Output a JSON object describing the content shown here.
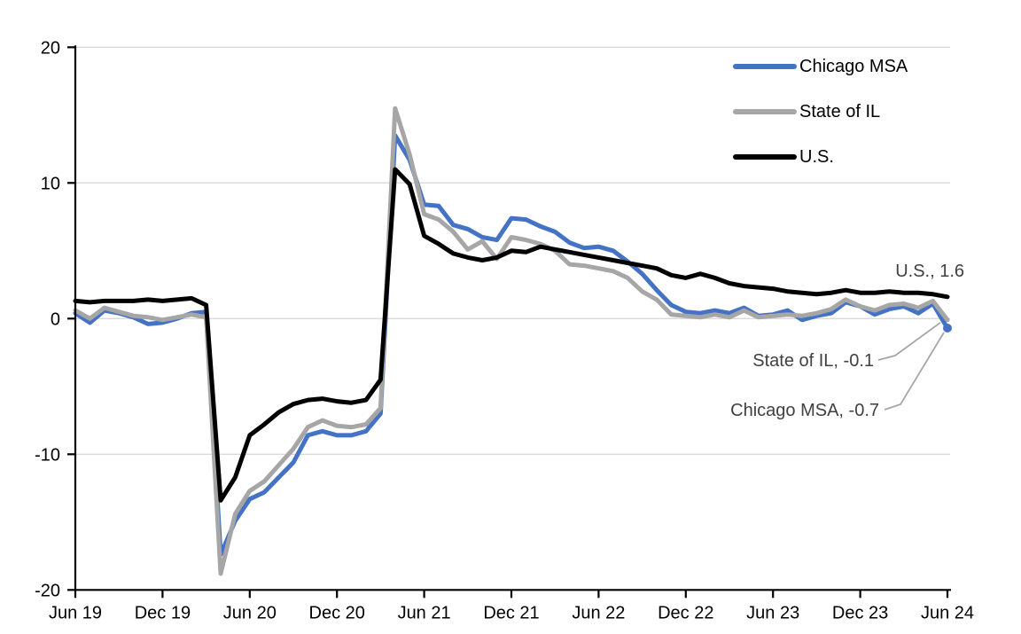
{
  "chart": {
    "legend": {
      "items": [
        {
          "label": "Chicago MSA",
          "color": "#4472C4"
        },
        {
          "label": "State of IL",
          "color": "#A6A6A6"
        },
        {
          "label": "U.S.",
          "color": "#000000"
        }
      ]
    },
    "annotations": {
      "us": "U.S., 1.6",
      "il": "State of IL, -0.1",
      "chicago": "Chicago MSA, -0.7"
    },
    "colors": {
      "gridline": "#D9D9D9",
      "axis": "#000000",
      "annotation_text": "#404040",
      "leader_line": "#A6A6A6"
    }
  },
  "chart_data": {
    "type": "line",
    "title": "",
    "xlabel": "",
    "ylabel": "",
    "ylim": [
      -20,
      20
    ],
    "y_ticks": [
      20,
      10,
      0,
      -10,
      -20
    ],
    "grid": "horizontal",
    "legend_position": "top-right",
    "x_months": [
      "2019-06",
      "2019-07",
      "2019-08",
      "2019-09",
      "2019-10",
      "2019-11",
      "2019-12",
      "2020-01",
      "2020-02",
      "2020-03",
      "2020-04",
      "2020-05",
      "2020-06",
      "2020-07",
      "2020-08",
      "2020-09",
      "2020-10",
      "2020-11",
      "2020-12",
      "2021-01",
      "2021-02",
      "2021-03",
      "2021-04",
      "2021-05",
      "2021-06",
      "2021-07",
      "2021-08",
      "2021-09",
      "2021-10",
      "2021-11",
      "2021-12",
      "2022-01",
      "2022-02",
      "2022-03",
      "2022-04",
      "2022-05",
      "2022-06",
      "2022-07",
      "2022-08",
      "2022-09",
      "2022-10",
      "2022-11",
      "2022-12",
      "2023-01",
      "2023-02",
      "2023-03",
      "2023-04",
      "2023-05",
      "2023-06",
      "2023-07",
      "2023-08",
      "2023-09",
      "2023-10",
      "2023-11",
      "2023-12",
      "2024-01",
      "2024-02",
      "2024-03",
      "2024-04",
      "2024-05",
      "2024-06"
    ],
    "x_tick_labels": [
      "Jun 19",
      "Dec 19",
      "Jun 20",
      "Dec 20",
      "Jun 21",
      "Dec 21",
      "Jun 22",
      "Dec 22",
      "Jun 23",
      "Dec 23",
      "Jun 24"
    ],
    "x_tick_indices": [
      0,
      6,
      12,
      18,
      24,
      30,
      36,
      42,
      48,
      54,
      60
    ],
    "series": [
      {
        "name": "Chicago MSA",
        "color": "#4472C4",
        "values": [
          0.4,
          -0.3,
          0.6,
          0.4,
          0.1,
          -0.4,
          -0.3,
          0.0,
          0.4,
          0.5,
          -17.4,
          -14.9,
          -13.3,
          -12.8,
          -11.7,
          -10.6,
          -8.6,
          -8.3,
          -8.6,
          -8.6,
          -8.3,
          -7.0,
          13.5,
          11.7,
          8.4,
          8.3,
          6.9,
          6.6,
          6.0,
          5.8,
          7.4,
          7.3,
          6.8,
          6.4,
          5.6,
          5.2,
          5.3,
          5.0,
          4.2,
          3.3,
          2.1,
          1.0,
          0.5,
          0.4,
          0.6,
          0.4,
          0.8,
          0.2,
          0.3,
          0.6,
          -0.1,
          0.2,
          0.4,
          1.2,
          0.9,
          0.3,
          0.7,
          0.9,
          0.4,
          1.1,
          -0.7
        ]
      },
      {
        "name": "State of IL",
        "color": "#A6A6A6",
        "values": [
          0.6,
          0.0,
          0.8,
          0.5,
          0.2,
          0.1,
          -0.1,
          0.1,
          0.3,
          0.1,
          -18.8,
          -14.4,
          -12.7,
          -12.0,
          -10.8,
          -9.6,
          -8.0,
          -7.5,
          -7.9,
          -8.0,
          -7.8,
          -6.6,
          15.5,
          12.1,
          7.7,
          7.3,
          6.4,
          5.1,
          5.7,
          4.4,
          6.0,
          5.8,
          5.5,
          5.0,
          4.0,
          3.9,
          3.7,
          3.5,
          3.0,
          2.0,
          1.4,
          0.3,
          0.2,
          0.1,
          0.3,
          0.1,
          0.6,
          0.1,
          0.2,
          0.3,
          0.2,
          0.4,
          0.7,
          1.4,
          0.9,
          0.6,
          1.0,
          1.1,
          0.8,
          1.3,
          -0.1
        ]
      },
      {
        "name": "U.S.",
        "color": "#000000",
        "values": [
          1.3,
          1.2,
          1.3,
          1.3,
          1.3,
          1.4,
          1.3,
          1.4,
          1.5,
          1.0,
          -13.4,
          -11.7,
          -8.6,
          -7.8,
          -6.9,
          -6.3,
          -6.0,
          -5.9,
          -6.1,
          -6.2,
          -6.0,
          -4.5,
          11.0,
          9.9,
          6.1,
          5.5,
          4.8,
          4.5,
          4.3,
          4.5,
          5.0,
          4.9,
          5.3,
          5.1,
          4.9,
          4.7,
          4.5,
          4.3,
          4.1,
          3.9,
          3.7,
          3.2,
          3.0,
          3.3,
          3.0,
          2.6,
          2.4,
          2.3,
          2.2,
          2.0,
          1.9,
          1.8,
          1.9,
          2.1,
          1.9,
          1.9,
          2.0,
          1.9,
          1.9,
          1.8,
          1.6
        ]
      }
    ],
    "end_labels": [
      {
        "series": "U.S.",
        "value": 1.6
      },
      {
        "series": "State of IL",
        "value": -0.1
      },
      {
        "series": "Chicago MSA",
        "value": -0.7
      }
    ]
  }
}
